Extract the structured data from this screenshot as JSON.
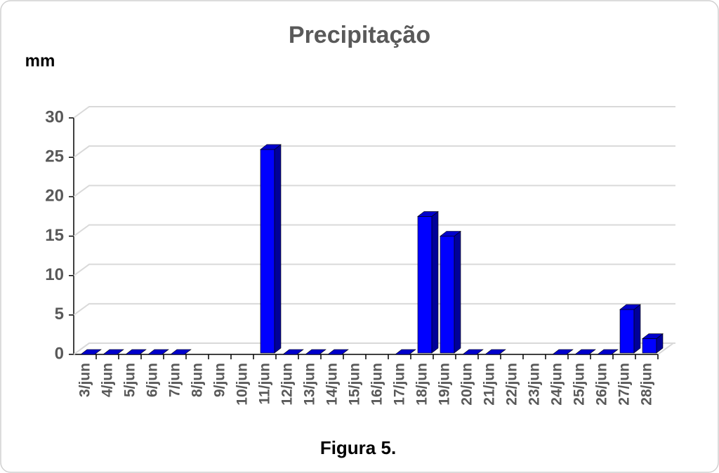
{
  "chart_data": {
    "type": "bar",
    "title": "Precipitação",
    "y_label": "mm",
    "caption": "Figura 5.",
    "categories": [
      "3/jun",
      "4/jun",
      "5/jun",
      "6/jun",
      "7/jun",
      "8/jun",
      "9/jun",
      "10/jun",
      "11/jun",
      "12/jun",
      "13/jun",
      "14/jun",
      "15/jun",
      "16/jun",
      "17/jun",
      "18/jun",
      "19/jun",
      "20/jun",
      "21/jun",
      "22/jun",
      "23/jun",
      "24/jun",
      "25/jun",
      "26/jun",
      "27/jun",
      "28/jun"
    ],
    "values": [
      0,
      0,
      0,
      0,
      0,
      null,
      null,
      null,
      26,
      0,
      0,
      0,
      null,
      null,
      0,
      17.5,
      15,
      0,
      0,
      null,
      null,
      0,
      0,
      0,
      5.7,
      2
    ],
    "color": "#0000ff",
    "ylim": [
      0,
      30
    ],
    "yticks": [
      0,
      5,
      10,
      15,
      20,
      25,
      30
    ],
    "grid": true
  }
}
